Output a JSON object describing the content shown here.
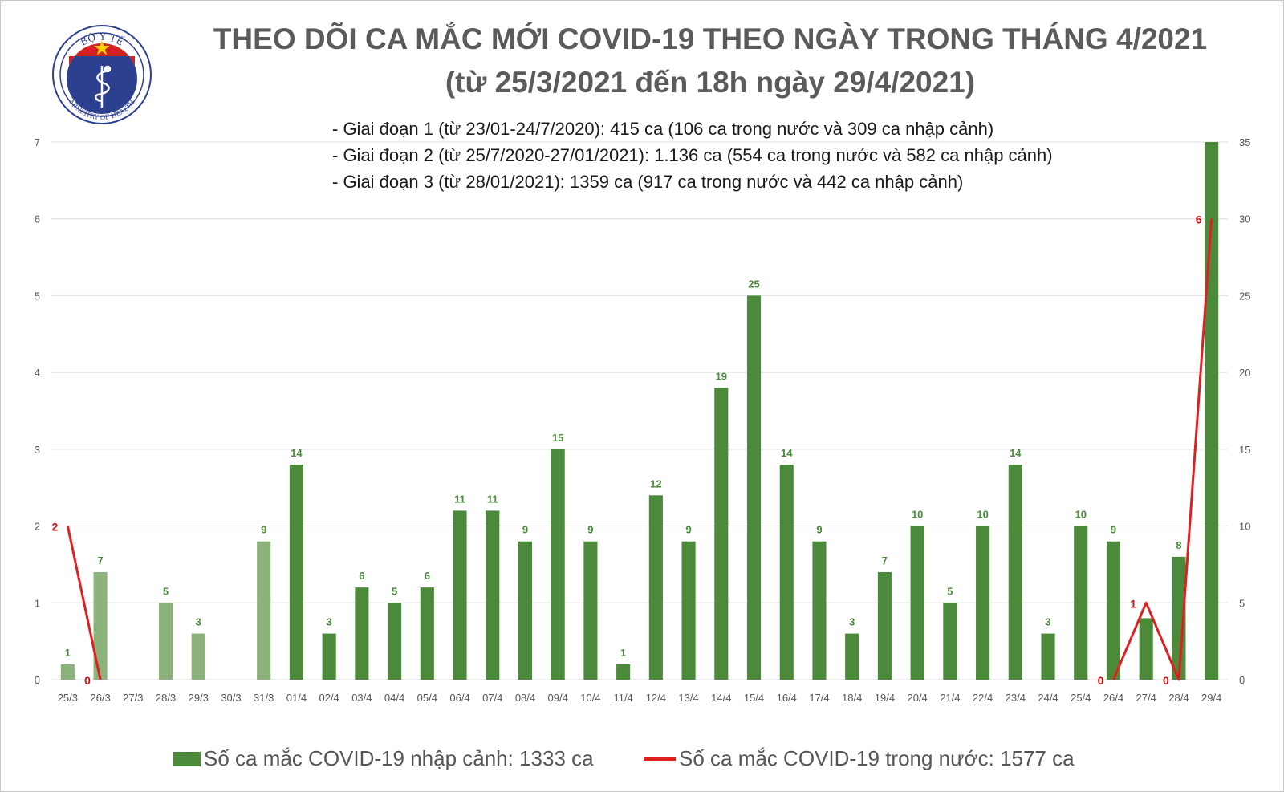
{
  "title_line1": "THEO DÕI CA MẮC MỚI COVID-19 THEO NGÀY TRONG THÁNG 4/2021",
  "title_line2": "(từ 25/3/2021 đến 18h ngày 29/4/2021)",
  "logo": {
    "top_text": "BỘ Y TẾ",
    "bottom_text": "MINISTRY OF HEALTH"
  },
  "notes": [
    "- Giai đoạn 1 (từ 23/01-24/7/2020): 415 ca (106 ca trong nước và 309 ca nhập cảnh)",
    "- Giai đoạn 2 (từ 25/7/2020-27/01/2021): 1.136 ca (554 ca trong nước và 582 ca nhập cảnh)",
    "- Giai đoạn 3 (từ 28/01/2021): 1359 ca (917 ca trong nước và 442 ca nhập cảnh)"
  ],
  "legend": {
    "bar_label": "Số ca mắc COVID-19 nhập cảnh: 1333 ca",
    "line_label": "Số ca mắc COVID-19 trong nước: 1577 ca"
  },
  "colors": {
    "bar_light": "#8bb27a",
    "bar_dark": "#4a8a3a",
    "bar_label": "#4a8a3a",
    "line": "#e02020",
    "line_label": "#d01010",
    "grid": "#e3e3e3",
    "axis_text": "#555555"
  },
  "chart_data": {
    "type": "bar+line",
    "categories": [
      "25/3",
      "26/3",
      "27/3",
      "28/3",
      "29/3",
      "30/3",
      "31/3",
      "01/4",
      "02/4",
      "03/4",
      "04/4",
      "05/4",
      "06/4",
      "07/4",
      "08/4",
      "09/4",
      "10/4",
      "11/4",
      "12/4",
      "13/4",
      "14/4",
      "15/4",
      "16/4",
      "17/4",
      "18/4",
      "19/4",
      "20/4",
      "21/4",
      "22/4",
      "23/4",
      "24/4",
      "25/4",
      "26/4",
      "27/4",
      "28/4",
      "29/4"
    ],
    "bar_series": {
      "values": [
        1,
        7,
        null,
        5,
        3,
        null,
        9,
        14,
        3,
        6,
        5,
        6,
        11,
        11,
        9,
        15,
        9,
        1,
        12,
        9,
        19,
        25,
        14,
        9,
        3,
        7,
        10,
        5,
        10,
        14,
        3,
        10,
        9,
        4,
        8,
        35
      ],
      "labels": [
        "1",
        "7",
        "",
        "5",
        "3",
        "",
        "9",
        "14",
        "3",
        "6",
        "5",
        "6",
        "11",
        "11",
        "9",
        "15",
        "9",
        "1",
        "12",
        "9",
        "19",
        "25",
        "14",
        "9",
        "3",
        "7",
        "10",
        "5",
        "10",
        "14",
        "3",
        "10",
        "9",
        "",
        "8",
        ""
      ],
      "light_shade_count": 7,
      "axis": "left"
    },
    "line_segments": [
      {
        "points": [
          {
            "x": "25/3",
            "y": 2
          },
          {
            "x": "26/3",
            "y": 0
          }
        ],
        "labels": [
          "2",
          "0"
        ]
      },
      {
        "points": [
          {
            "x": "26/4",
            "y": 0
          },
          {
            "x": "27/4",
            "y": 1
          },
          {
            "x": "28/4",
            "y": 0
          },
          {
            "x": "29/4",
            "y": 6
          }
        ],
        "labels": [
          "0",
          "1",
          "0",
          "6"
        ]
      }
    ],
    "left_axis": {
      "min": 0,
      "max": 35,
      "ticks": [
        0,
        5,
        10,
        15,
        20,
        25,
        30,
        35
      ],
      "tick_labels": [
        "0",
        "1",
        "2",
        "3",
        "4",
        "5",
        "6",
        "7"
      ]
    },
    "right_axis": {
      "min": 0,
      "max": 35,
      "ticks": [
        0,
        5,
        10,
        15,
        20,
        25,
        30,
        35
      ],
      "tick_labels": [
        "0",
        "5",
        "10",
        "15",
        "20",
        "25",
        "30",
        "35"
      ]
    },
    "line_axis": {
      "min": 0,
      "max": 7
    },
    "grid": true,
    "legend_position": "bottom"
  }
}
